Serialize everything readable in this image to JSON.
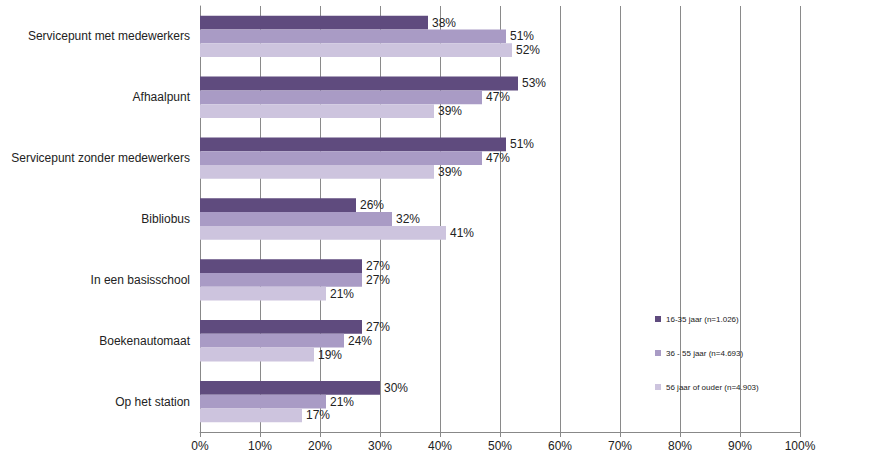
{
  "chart_data": {
    "type": "bar",
    "orientation": "horizontal",
    "categories": [
      "Servicepunt met medewerkers",
      "Afhaalpunt",
      "Servicepunt zonder medewerkers",
      "Bibliobus",
      "In een basisschool",
      "Boekenautomaat",
      "Op het station"
    ],
    "series": [
      {
        "name": "16-35 jaar (n=1.026)",
        "color": "#5f4b7e",
        "values": [
          38,
          53,
          51,
          26,
          27,
          27,
          30
        ],
        "value_labels": [
          "38%",
          "53%",
          "51%",
          "26%",
          "27%",
          "27%",
          "30%"
        ]
      },
      {
        "name": "36 - 55 jaar (n=4.693)",
        "color": "#a99bc5",
        "values": [
          51,
          47,
          47,
          32,
          27,
          24,
          21
        ],
        "value_labels": [
          "51%",
          "47%",
          "47%",
          "32%",
          "27%",
          "24%",
          "21%"
        ]
      },
      {
        "name": "56 jaar of ouder (n=4.903)",
        "color": "#cdc4de",
        "values": [
          52,
          39,
          39,
          41,
          21,
          19,
          17
        ],
        "value_labels": [
          "52%",
          "39%",
          "39%",
          "41%",
          "21%",
          "19%",
          "17%"
        ]
      }
    ],
    "xlim": [
      0,
      100
    ],
    "xticks": [
      {
        "value": 0,
        "label": "0%"
      },
      {
        "value": 10,
        "label": "10%"
      },
      {
        "value": 20,
        "label": "20%"
      },
      {
        "value": 30,
        "label": "30%"
      },
      {
        "value": 40,
        "label": "40%"
      },
      {
        "value": 50,
        "label": "50%"
      },
      {
        "value": 60,
        "label": "60%"
      },
      {
        "value": 70,
        "label": "70%"
      },
      {
        "value": 80,
        "label": "80%"
      },
      {
        "value": 90,
        "label": "90%"
      },
      {
        "value": 100,
        "label": "100%"
      }
    ],
    "grid": true,
    "data_labels": true,
    "legend": "right"
  }
}
